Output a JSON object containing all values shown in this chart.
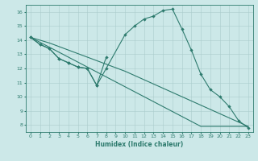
{
  "xlabel": "Humidex (Indice chaleur)",
  "bg_color": "#cce8e8",
  "line_color": "#2e7b6e",
  "grid_color": "#aacccc",
  "xlim": [
    -0.5,
    23.5
  ],
  "ylim": [
    7.5,
    16.5
  ],
  "xticks": [
    0,
    1,
    2,
    3,
    4,
    5,
    6,
    7,
    8,
    9,
    10,
    11,
    12,
    13,
    14,
    15,
    16,
    17,
    18,
    19,
    20,
    21,
    22,
    23
  ],
  "yticks": [
    8,
    9,
    10,
    11,
    12,
    13,
    14,
    15,
    16
  ],
  "line1_x": [
    0,
    1,
    2,
    3,
    4,
    5,
    6,
    7,
    8
  ],
  "line1_y": [
    14.2,
    13.7,
    13.4,
    12.7,
    12.4,
    12.1,
    12.0,
    10.8,
    12.8
  ],
  "line2_x": [
    0,
    1,
    2,
    3,
    4,
    5,
    6,
    7,
    8,
    10,
    11,
    12,
    13,
    14,
    15,
    16,
    17,
    18,
    19,
    20,
    21,
    22,
    23
  ],
  "line2_y": [
    14.2,
    13.7,
    13.4,
    12.7,
    12.4,
    12.1,
    12.0,
    10.8,
    12.0,
    14.4,
    15.0,
    15.5,
    15.7,
    16.1,
    16.2,
    14.8,
    13.3,
    11.6,
    10.5,
    10.0,
    9.3,
    8.3,
    7.8
  ],
  "line3_x": [
    0,
    1,
    2,
    3,
    4,
    5,
    6,
    7,
    8,
    9,
    10,
    11,
    12,
    13,
    14,
    15,
    16,
    17,
    18,
    19,
    20,
    21,
    22,
    23
  ],
  "line3_y": [
    14.2,
    13.85,
    13.5,
    13.15,
    12.8,
    12.45,
    12.1,
    11.75,
    11.4,
    11.05,
    10.7,
    10.35,
    10.0,
    9.65,
    9.3,
    8.95,
    8.6,
    8.25,
    7.9,
    7.9,
    7.9,
    7.9,
    7.9,
    7.9
  ],
  "line4_x": [
    0,
    1,
    2,
    3,
    4,
    5,
    6,
    7,
    8,
    9,
    10,
    11,
    12,
    13,
    14,
    15,
    16,
    17,
    18,
    19,
    20,
    21,
    22,
    23
  ],
  "line4_y": [
    14.2,
    14.0,
    13.8,
    13.55,
    13.3,
    13.05,
    12.8,
    12.55,
    12.3,
    12.05,
    11.8,
    11.5,
    11.2,
    10.9,
    10.6,
    10.3,
    10.0,
    9.7,
    9.4,
    9.1,
    8.8,
    8.5,
    8.2,
    7.9
  ]
}
